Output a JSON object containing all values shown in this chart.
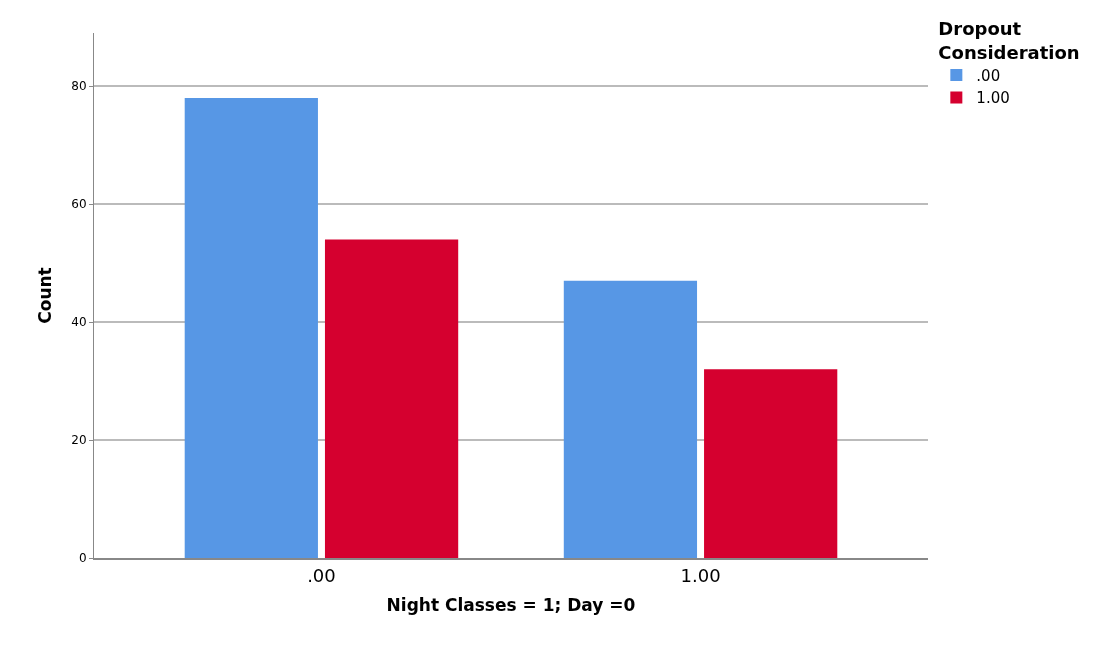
{
  "chart_data": {
    "type": "bar",
    "xlabel": "Night Classes = 1; Day =0",
    "ylabel": "Count",
    "legend_title": "Dropout Consideration",
    "categories": [
      ".00",
      "1.00"
    ],
    "series": [
      {
        "name": ".00",
        "color": "#5797e5",
        "values": [
          78,
          47
        ]
      },
      {
        "name": "1.00",
        "color": "#d5002f",
        "values": [
          54,
          32
        ]
      }
    ],
    "ylim": [
      0,
      89
    ],
    "yticks": [
      0,
      20,
      40,
      60,
      80
    ],
    "grid": "y",
    "legend": "top right"
  }
}
